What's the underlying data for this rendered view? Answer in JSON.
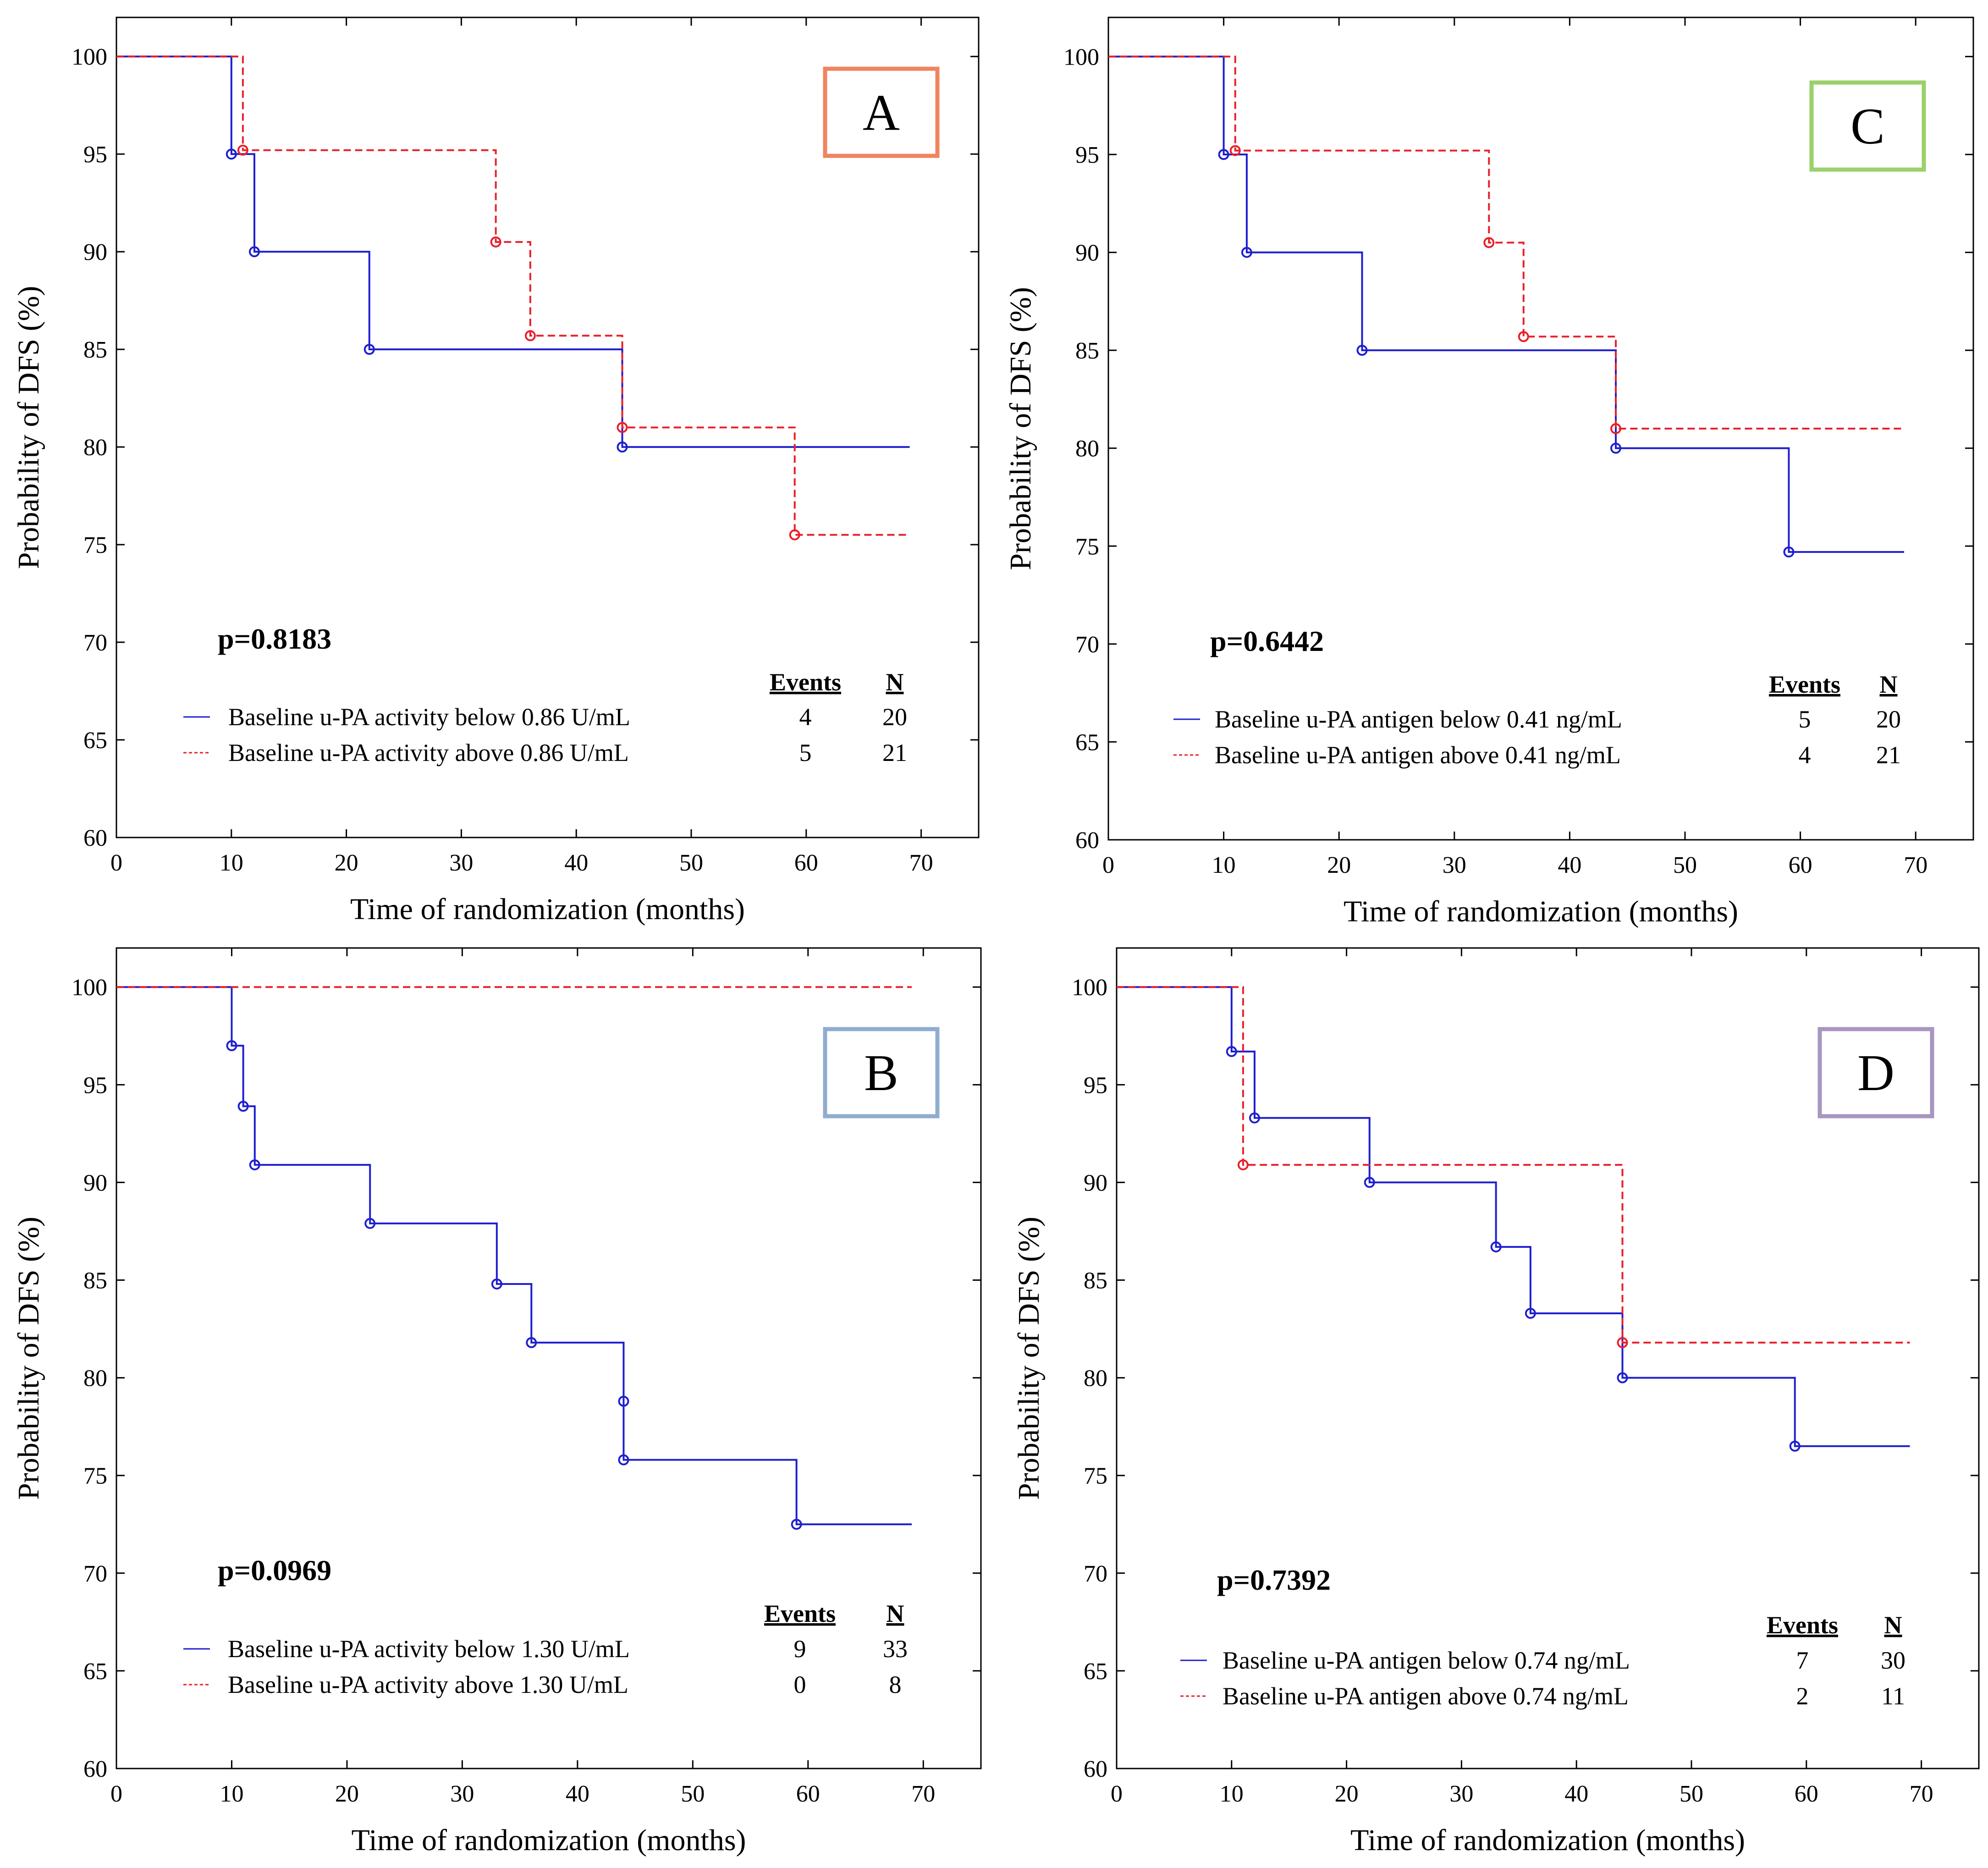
{
  "figure": {
    "description_hidden": false
  },
  "chart_data": [
    {
      "type": "line",
      "subtype": "kaplan-meier",
      "panel_label": "A",
      "label_color": "#ef8560",
      "xlabel": "Time of randomization (months)",
      "ylabel": "Probability of DFS (%)",
      "xlim": [
        0,
        75
      ],
      "ylim": [
        60,
        102
      ],
      "xticks": [
        "0",
        "10",
        "20",
        "30",
        "40",
        "50",
        "60",
        "70"
      ],
      "yticks": [
        "60",
        "65",
        "70",
        "75",
        "80",
        "85",
        "90",
        "95",
        "100"
      ],
      "p_value": "p=0.8183",
      "legend_events_header": "Events",
      "legend_n_header": "N",
      "series": [
        {
          "name": "Baseline u-PA activity below 0.86 U/mL",
          "events": "4",
          "n": "20",
          "color": "#1f1fcf",
          "style": "solid",
          "points": [
            [
              0,
              100
            ],
            [
              10,
              95
            ],
            [
              12,
              90
            ],
            [
              22,
              85
            ],
            [
              44,
              80
            ],
            [
              69,
              80
            ]
          ],
          "markers": [
            [
              10,
              95
            ],
            [
              12,
              90
            ],
            [
              22,
              85
            ],
            [
              44,
              80
            ]
          ]
        },
        {
          "name": "Baseline u-PA activity above 0.86 U/mL",
          "events": "5",
          "n": "21",
          "color": "#e8202a",
          "style": "dashed",
          "points": [
            [
              0,
              100
            ],
            [
              11,
              95.2
            ],
            [
              33,
              90.5
            ],
            [
              36,
              85.7
            ],
            [
              44,
              81
            ],
            [
              59,
              75.5
            ],
            [
              69,
              75.5
            ]
          ],
          "markers": [
            [
              11,
              95.2
            ],
            [
              33,
              90.5
            ],
            [
              36,
              85.7
            ],
            [
              44,
              81
            ],
            [
              59,
              75.5
            ]
          ]
        }
      ]
    },
    {
      "type": "line",
      "subtype": "kaplan-meier",
      "panel_label": "C",
      "label_color": "#9bd06a",
      "xlabel": "Time of randomization (months)",
      "ylabel": "Probability of DFS (%)",
      "xlim": [
        0,
        75
      ],
      "ylim": [
        60,
        102
      ],
      "xticks": [
        "0",
        "10",
        "20",
        "30",
        "40",
        "50",
        "60",
        "70"
      ],
      "yticks": [
        "60",
        "65",
        "70",
        "75",
        "80",
        "85",
        "90",
        "95",
        "100"
      ],
      "p_value": "p=0.6442",
      "legend_events_header": "Events",
      "legend_n_header": "N",
      "series": [
        {
          "name": "Baseline u-PA antigen below 0.41 ng/mL",
          "events": "5",
          "n": "20",
          "color": "#1f1fcf",
          "style": "solid",
          "points": [
            [
              0,
              100
            ],
            [
              10,
              95
            ],
            [
              12,
              90
            ],
            [
              22,
              85
            ],
            [
              44,
              80
            ],
            [
              59,
              74.7
            ],
            [
              69,
              74.7
            ]
          ],
          "markers": [
            [
              10,
              95
            ],
            [
              12,
              90
            ],
            [
              22,
              85
            ],
            [
              44,
              80
            ],
            [
              59,
              74.7
            ]
          ]
        },
        {
          "name": "Baseline u-PA antigen above 0.41 ng/mL",
          "events": "4",
          "n": "21",
          "color": "#e8202a",
          "style": "dashed",
          "points": [
            [
              0,
              100
            ],
            [
              11,
              95.2
            ],
            [
              33,
              90.5
            ],
            [
              36,
              85.7
            ],
            [
              44,
              81
            ],
            [
              69,
              81
            ]
          ],
          "markers": [
            [
              11,
              95.2
            ],
            [
              33,
              90.5
            ],
            [
              36,
              85.7
            ],
            [
              44,
              81
            ]
          ]
        }
      ]
    },
    {
      "type": "line",
      "subtype": "kaplan-meier",
      "panel_label": "B",
      "label_color": "#8fadd0",
      "xlabel": "Time of randomization (months)",
      "ylabel": "Probability of DFS (%)",
      "xlim": [
        0,
        75
      ],
      "ylim": [
        60,
        102
      ],
      "xticks": [
        "0",
        "10",
        "20",
        "30",
        "40",
        "50",
        "60",
        "70"
      ],
      "yticks": [
        "60",
        "65",
        "70",
        "75",
        "80",
        "85",
        "90",
        "95",
        "100"
      ],
      "p_value": "p=0.0969",
      "legend_events_header": "Events",
      "legend_n_header": "N",
      "series": [
        {
          "name": "Baseline u-PA activity below 1.30 U/mL",
          "events": "9",
          "n": "33",
          "color": "#1f1fcf",
          "style": "solid",
          "points": [
            [
              0,
              100
            ],
            [
              10,
              97
            ],
            [
              11,
              93.9
            ],
            [
              12,
              90.9
            ],
            [
              22,
              87.9
            ],
            [
              33,
              84.8
            ],
            [
              36,
              81.8
            ],
            [
              44,
              75.8
            ],
            [
              59,
              72.5
            ],
            [
              69,
              72.5
            ]
          ],
          "markers": [
            [
              10,
              97
            ],
            [
              11,
              93.9
            ],
            [
              12,
              90.9
            ],
            [
              22,
              87.9
            ],
            [
              33,
              84.8
            ],
            [
              36,
              81.8
            ],
            [
              44,
              78.8
            ],
            [
              44,
              75.8
            ],
            [
              59,
              72.5
            ]
          ]
        },
        {
          "name": "Baseline u-PA activity above 1.30 U/mL",
          "events": "0",
          "n": "8",
          "color": "#e8202a",
          "style": "dashed",
          "points": [
            [
              0,
              100
            ],
            [
              69,
              100
            ]
          ],
          "markers": []
        }
      ]
    },
    {
      "type": "line",
      "subtype": "kaplan-meier",
      "panel_label": "D",
      "label_color": "#a895c0",
      "xlabel": "Time of randomization (months)",
      "ylabel": "Probability of DFS (%)",
      "xlim": [
        0,
        75
      ],
      "ylim": [
        60,
        102
      ],
      "xticks": [
        "0",
        "10",
        "20",
        "30",
        "40",
        "50",
        "60",
        "70"
      ],
      "yticks": [
        "60",
        "65",
        "70",
        "75",
        "80",
        "85",
        "90",
        "95",
        "100"
      ],
      "p_value": "p=0.7392",
      "legend_events_header": "Events",
      "legend_n_header": "N",
      "series": [
        {
          "name": "Baseline u-PA antigen below 0.74 ng/mL",
          "events": "7",
          "n": "30",
          "color": "#1f1fcf",
          "style": "solid",
          "points": [
            [
              0,
              100
            ],
            [
              10,
              96.7
            ],
            [
              12,
              93.3
            ],
            [
              22,
              90
            ],
            [
              33,
              86.7
            ],
            [
              36,
              83.3
            ],
            [
              44,
              80
            ],
            [
              59,
              76.5
            ],
            [
              69,
              76.5
            ]
          ],
          "markers": [
            [
              10,
              96.7
            ],
            [
              12,
              93.3
            ],
            [
              22,
              90
            ],
            [
              33,
              86.7
            ],
            [
              36,
              83.3
            ],
            [
              44,
              80
            ],
            [
              59,
              76.5
            ]
          ]
        },
        {
          "name": "Baseline u-PA antigen above 0.74 ng/mL",
          "events": "2",
          "n": "11",
          "color": "#e8202a",
          "style": "dashed",
          "points": [
            [
              0,
              100
            ],
            [
              11,
              90.9
            ],
            [
              44,
              81.8
            ],
            [
              69,
              81.8
            ]
          ],
          "markers": [
            [
              11,
              90.9
            ],
            [
              44,
              81.8
            ]
          ]
        }
      ]
    }
  ]
}
